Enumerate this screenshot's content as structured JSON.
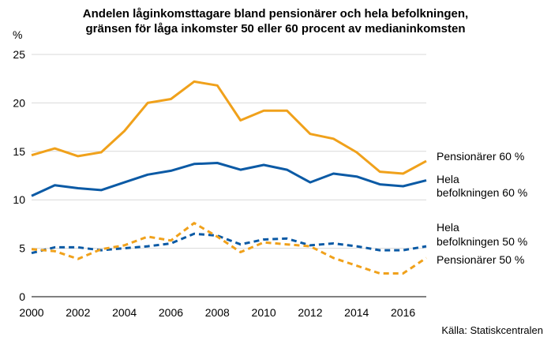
{
  "chart_data": {
    "type": "line",
    "title_lines": [
      "Andelen låginkomsttagare bland pensionärer och hela befolkningen,",
      "gränsen för låga inkomster 50 eller 60 procent av medianinkomsten"
    ],
    "unit_label": "%",
    "source": "Källa: Statiskcentralen",
    "ylim": [
      0,
      25
    ],
    "yticks": [
      0,
      5,
      10,
      15,
      20,
      25
    ],
    "xlim": [
      2000,
      2017
    ],
    "xticks": [
      2000,
      2002,
      2004,
      2006,
      2008,
      2010,
      2012,
      2014,
      2016
    ],
    "grid": true,
    "legend": "direct labels at right end of lines",
    "x": [
      2000,
      2001,
      2002,
      2003,
      2004,
      2005,
      2006,
      2007,
      2008,
      2009,
      2010,
      2011,
      2012,
      2013,
      2014,
      2015,
      2016,
      2017
    ],
    "series": [
      {
        "key": "pension60",
        "label_lines": [
          "Pensionärer 60 %"
        ],
        "color": "#f0a11b",
        "dashed": false,
        "values": [
          14.6,
          15.3,
          14.5,
          14.9,
          17.1,
          20.0,
          20.4,
          22.2,
          21.8,
          18.2,
          19.2,
          19.2,
          16.8,
          16.3,
          14.9,
          12.9,
          12.7,
          14.0
        ]
      },
      {
        "key": "hela60",
        "label_lines": [
          "Hela",
          "befolkningen 60 %"
        ],
        "color": "#0b5aa5",
        "dashed": false,
        "values": [
          10.4,
          11.5,
          11.2,
          11.0,
          11.8,
          12.6,
          13.0,
          13.7,
          13.8,
          13.1,
          13.6,
          13.1,
          11.8,
          12.7,
          12.4,
          11.6,
          11.4,
          12.0
        ]
      },
      {
        "key": "hela50",
        "label_lines": [
          "Hela",
          "befolkningen 50 %"
        ],
        "color": "#0b5aa5",
        "dashed": true,
        "values": [
          4.5,
          5.1,
          5.1,
          4.8,
          5.0,
          5.2,
          5.5,
          6.5,
          6.3,
          5.4,
          5.9,
          6.0,
          5.3,
          5.5,
          5.2,
          4.8,
          4.8,
          5.2
        ]
      },
      {
        "key": "pension50",
        "label_lines": [
          "Pensionärer 50 %"
        ],
        "color": "#f0a11b",
        "dashed": true,
        "values": [
          4.9,
          4.7,
          3.9,
          4.9,
          5.3,
          6.2,
          5.8,
          7.6,
          6.2,
          4.6,
          5.6,
          5.4,
          5.2,
          4.0,
          3.2,
          2.4,
          2.4,
          4.0
        ]
      }
    ]
  }
}
